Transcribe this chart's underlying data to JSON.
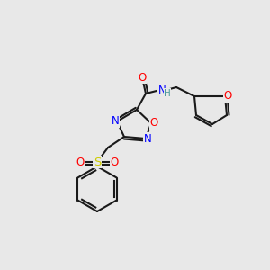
{
  "bg_color": "#e8e8e8",
  "bond_color": "#1a1a1a",
  "atom_colors": {
    "O": "#ff0000",
    "N": "#0000ff",
    "S": "#cccc00",
    "C": "#1a1a1a",
    "H": "#4a9a9a"
  },
  "lw": 1.5,
  "font_size": 8.5
}
